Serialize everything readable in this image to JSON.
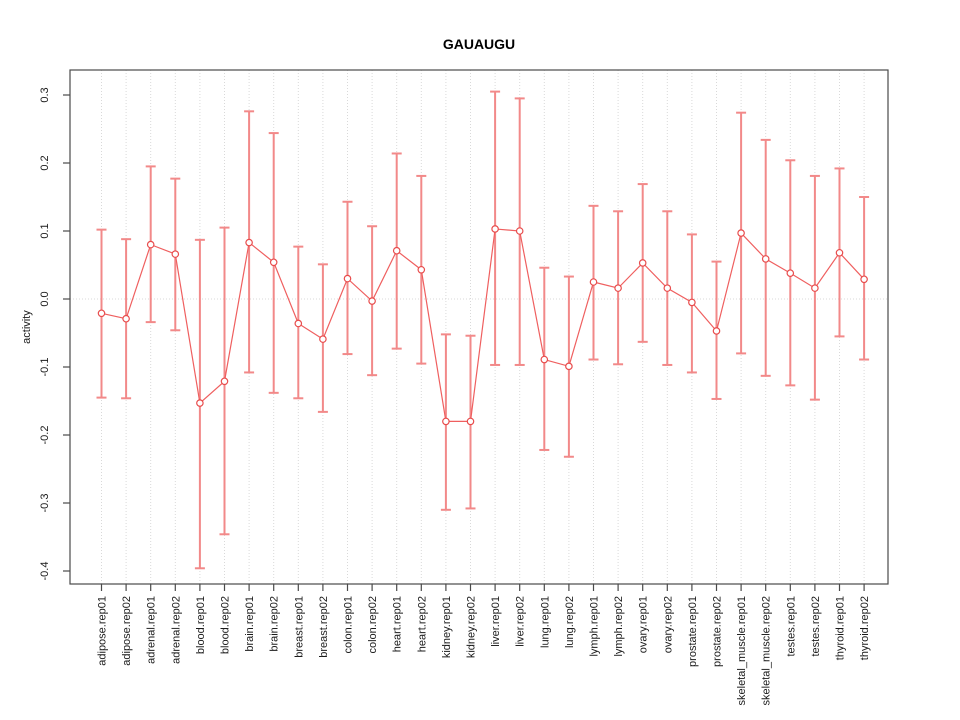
{
  "chart_data": {
    "type": "line",
    "title": "GAUAUGU",
    "xlabel": "",
    "ylabel": "activity",
    "legend": "none",
    "grid": "dotted vertical per category plus dotted zero line",
    "ylim": [
      -0.419,
      0.337
    ],
    "yticks": [
      0.3,
      0.2,
      0.1,
      0.0,
      -0.1,
      -0.2,
      -0.3,
      -0.4
    ],
    "categories": [
      "adipose.rep01",
      "adipose.rep02",
      "adrenal.rep01",
      "adrenal.rep02",
      "blood.rep01",
      "blood.rep02",
      "brain.rep01",
      "brain.rep02",
      "breast.rep01",
      "breast.rep02",
      "colon.rep01",
      "colon.rep02",
      "heart.rep01",
      "heart.rep02",
      "kidney.rep01",
      "kidney.rep02",
      "liver.rep01",
      "liver.rep02",
      "lung.rep01",
      "lung.rep02",
      "lymph.rep01",
      "lymph.rep02",
      "ovary.rep01",
      "ovary.rep02",
      "prostate.rep01",
      "prostate.rep02",
      "skeletal_muscle.rep01",
      "skeletal_muscle.rep02",
      "testes.rep01",
      "testes.rep02",
      "thyroid.rep01",
      "thyroid.rep02"
    ],
    "series": [
      {
        "name": "activity",
        "values": [
          -0.021,
          -0.029,
          0.08,
          0.066,
          -0.153,
          -0.121,
          0.083,
          0.054,
          -0.036,
          -0.059,
          0.03,
          -0.003,
          0.071,
          0.043,
          -0.18,
          -0.18,
          0.103,
          0.1,
          -0.089,
          -0.099,
          0.025,
          0.016,
          0.053,
          0.016,
          -0.005,
          -0.047,
          0.097,
          0.059,
          0.038,
          0.016,
          0.068,
          0.029
        ]
      }
    ],
    "error_low": [
      -0.145,
      -0.146,
      -0.034,
      -0.046,
      -0.396,
      -0.346,
      -0.108,
      -0.138,
      -0.146,
      -0.166,
      -0.081,
      -0.112,
      -0.073,
      -0.095,
      -0.31,
      -0.308,
      -0.097,
      -0.097,
      -0.222,
      -0.232,
      -0.089,
      -0.096,
      -0.063,
      -0.097,
      -0.108,
      -0.147,
      -0.08,
      -0.113,
      -0.127,
      -0.148,
      -0.055,
      -0.089
    ],
    "error_high": [
      0.102,
      0.088,
      0.195,
      0.177,
      0.087,
      0.105,
      0.276,
      0.244,
      0.077,
      0.051,
      0.143,
      0.107,
      0.214,
      0.181,
      -0.052,
      -0.054,
      0.305,
      0.295,
      0.046,
      0.033,
      0.137,
      0.129,
      0.169,
      0.129,
      0.095,
      0.055,
      0.274,
      0.234,
      0.204,
      0.181,
      0.192,
      0.15
    ],
    "colors": {
      "error_bar": "#f28989",
      "series_line": "#ef5f5f",
      "marker_stroke": "#e84c4c",
      "grid": "#d9d9d9",
      "axis": "#4a4a4a",
      "text": "#1a1a1a"
    }
  }
}
